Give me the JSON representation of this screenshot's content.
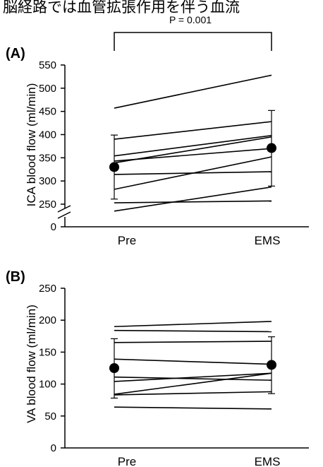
{
  "header_text": "脳経路では血管拡張作用を伴う血流",
  "chart_data": [
    {
      "type": "line",
      "panel_label": "(A)",
      "title": "",
      "xlabel": "",
      "ylabel": "ICA  blood flow (ml/min)",
      "categories": [
        "Pre",
        "EMS"
      ],
      "yticks": [
        0,
        250,
        300,
        350,
        400,
        450,
        500,
        550
      ],
      "axis_break": true,
      "ylim": [
        230,
        550
      ],
      "subjects": [
        {
          "values": [
            457,
            528
          ]
        },
        {
          "values": [
            390,
            428
          ]
        },
        {
          "values": [
            354,
            398
          ]
        },
        {
          "values": [
            343,
            370
          ]
        },
        {
          "values": [
            339,
            395
          ]
        },
        {
          "values": [
            314,
            320
          ]
        },
        {
          "values": [
            282,
            352
          ]
        },
        {
          "values": [
            253,
            257
          ]
        },
        {
          "values": [
            235,
            287
          ]
        }
      ],
      "means": [
        330,
        371
      ],
      "error_low": [
        261,
        289
      ],
      "error_high": [
        399,
        452
      ],
      "significance": {
        "text": "P = 0.001"
      }
    },
    {
      "type": "line",
      "panel_label": "(B)",
      "title": "",
      "xlabel": "",
      "ylabel": "VA  blood flow (ml/min)",
      "categories": [
        "Pre",
        "EMS"
      ],
      "yticks": [
        0,
        50,
        100,
        150,
        200,
        250
      ],
      "ylim": [
        0,
        250
      ],
      "subjects": [
        {
          "values": [
            190,
            198
          ]
        },
        {
          "values": [
            184,
            182
          ]
        },
        {
          "values": [
            165,
            167
          ]
        },
        {
          "values": [
            139,
            131
          ]
        },
        {
          "values": [
            111,
            106
          ]
        },
        {
          "values": [
            104,
            117
          ]
        },
        {
          "values": [
            84,
            117
          ]
        },
        {
          "values": [
            83,
            88
          ]
        },
        {
          "values": [
            64,
            61
          ]
        }
      ],
      "means": [
        125,
        130
      ],
      "error_low": [
        78,
        85
      ],
      "error_high": [
        171,
        174
      ]
    }
  ]
}
